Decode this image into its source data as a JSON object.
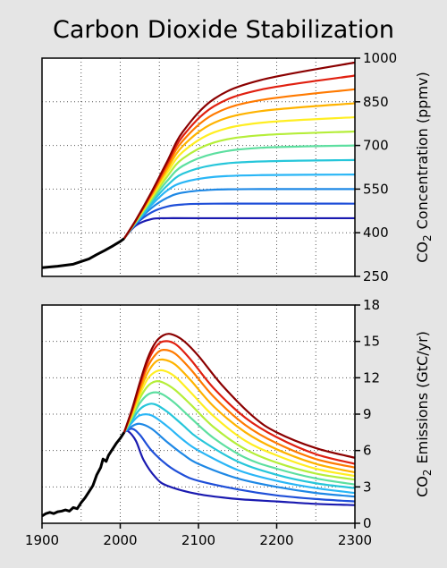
{
  "title": "Carbon Dioxide Stabilization",
  "chart_data": [
    {
      "type": "line",
      "panel": "concentration",
      "ylabel_prefix": "CO",
      "ylabel_sub": "2",
      "ylabel_suffix": "Concentration (ppmv)",
      "xlim": [
        1900,
        2300
      ],
      "ylim": [
        250,
        1000
      ],
      "yticks": [
        250,
        400,
        550,
        700,
        850,
        1000
      ],
      "y_tick_side": "right",
      "grid": true,
      "history": {
        "color": "#000000",
        "x": [
          1900,
          1920,
          1940,
          1960,
          1970,
          1980,
          1990,
          2000,
          2005
        ],
        "y": [
          280,
          285,
          292,
          310,
          325,
          339,
          354,
          370,
          380
        ]
      },
      "series": [
        {
          "color": "#1a1ab0",
          "x": [
            2005,
            2020,
            2040,
            2060,
            2100,
            2300
          ],
          "y": [
            380,
            425,
            447,
            450,
            450,
            450
          ]
        },
        {
          "color": "#1f4fd8",
          "x": [
            2005,
            2020,
            2040,
            2060,
            2080,
            2120,
            2300
          ],
          "y": [
            380,
            430,
            470,
            490,
            497,
            500,
            500
          ]
        },
        {
          "color": "#1e88e5",
          "x": [
            2005,
            2020,
            2040,
            2060,
            2080,
            2120,
            2180,
            2300
          ],
          "y": [
            380,
            432,
            485,
            520,
            538,
            548,
            550,
            550
          ]
        },
        {
          "color": "#29b6f6",
          "x": [
            2005,
            2020,
            2040,
            2060,
            2080,
            2120,
            2180,
            2300
          ],
          "y": [
            380,
            433,
            495,
            545,
            573,
            592,
            598,
            600
          ]
        },
        {
          "color": "#26c6da",
          "x": [
            2005,
            2020,
            2040,
            2060,
            2080,
            2120,
            2180,
            2300
          ],
          "y": [
            380,
            435,
            503,
            562,
            603,
            633,
            645,
            650
          ]
        },
        {
          "color": "#5ddfa0",
          "x": [
            2005,
            2020,
            2040,
            2060,
            2080,
            2120,
            2180,
            2300
          ],
          "y": [
            380,
            437,
            510,
            578,
            630,
            672,
            692,
            700
          ]
        },
        {
          "color": "#b5ee3a",
          "x": [
            2005,
            2020,
            2040,
            2060,
            2080,
            2120,
            2180,
            2300
          ],
          "y": [
            380,
            438,
            517,
            593,
            655,
            710,
            735,
            748
          ]
        },
        {
          "color": "#ffee22",
          "x": [
            2005,
            2020,
            2040,
            2060,
            2080,
            2120,
            2180,
            2300
          ],
          "y": [
            380,
            440,
            523,
            606,
            678,
            745,
            778,
            797
          ]
        },
        {
          "color": "#ffb300",
          "x": [
            2005,
            2020,
            2040,
            2060,
            2080,
            2120,
            2180,
            2300
          ],
          "y": [
            380,
            441,
            528,
            618,
            698,
            778,
            818,
            845
          ]
        },
        {
          "color": "#ff7a00",
          "x": [
            2005,
            2020,
            2040,
            2060,
            2080,
            2120,
            2180,
            2300
          ],
          "y": [
            380,
            442,
            532,
            628,
            716,
            808,
            856,
            893
          ]
        },
        {
          "color": "#e02010",
          "x": [
            2005,
            2020,
            2040,
            2060,
            2080,
            2120,
            2180,
            2300
          ],
          "y": [
            380,
            443,
            536,
            637,
            732,
            835,
            892,
            940
          ]
        },
        {
          "color": "#8b0000",
          "x": [
            2005,
            2020,
            2040,
            2060,
            2080,
            2120,
            2180,
            2300
          ],
          "y": [
            380,
            444,
            540,
            645,
            747,
            860,
            925,
            985
          ]
        }
      ]
    },
    {
      "type": "line",
      "panel": "emissions",
      "ylabel_prefix": "CO",
      "ylabel_sub": "2",
      "ylabel_suffix": "Emissions (GtC/yr)",
      "xlim": [
        1900,
        2300
      ],
      "ylim": [
        0,
        18
      ],
      "yticks": [
        0,
        3,
        6,
        9,
        12,
        15,
        18
      ],
      "xticks": [
        1900,
        2000,
        2100,
        2200,
        2300
      ],
      "y_tick_side": "right",
      "grid": true,
      "history": {
        "color": "#000000",
        "x": [
          1900,
          1905,
          1910,
          1915,
          1920,
          1925,
          1930,
          1935,
          1940,
          1945,
          1950,
          1955,
          1960,
          1965,
          1970,
          1975,
          1978,
          1982,
          1985,
          1990,
          1995,
          2000,
          2005
        ],
        "y": [
          0.6,
          0.8,
          0.9,
          0.8,
          0.95,
          1.0,
          1.1,
          1.0,
          1.3,
          1.2,
          1.7,
          2.1,
          2.6,
          3.1,
          4.0,
          4.6,
          5.3,
          5.1,
          5.6,
          6.1,
          6.6,
          7.0,
          7.5
        ]
      },
      "series": [
        {
          "color": "#1a1ab0",
          "x": [
            2005,
            2010,
            2020,
            2030,
            2045,
            2060,
            2100,
            2150,
            2200,
            2250,
            2300
          ],
          "y": [
            7.5,
            7.6,
            6.8,
            5.2,
            3.8,
            3.1,
            2.4,
            2.0,
            1.8,
            1.6,
            1.5
          ]
        },
        {
          "color": "#1f4fd8",
          "x": [
            2005,
            2015,
            2025,
            2040,
            2060,
            2080,
            2100,
            2150,
            2200,
            2250,
            2300
          ],
          "y": [
            7.5,
            7.8,
            7.3,
            6.0,
            4.8,
            4.0,
            3.5,
            2.8,
            2.3,
            2.0,
            1.8
          ]
        },
        {
          "color": "#1e88e5",
          "x": [
            2005,
            2015,
            2025,
            2040,
            2060,
            2080,
            2100,
            2150,
            2200,
            2250,
            2300
          ],
          "y": [
            7.5,
            8.0,
            8.2,
            7.8,
            6.7,
            5.7,
            4.9,
            3.7,
            3.0,
            2.5,
            2.2
          ]
        },
        {
          "color": "#29b6f6",
          "x": [
            2005,
            2015,
            2025,
            2040,
            2060,
            2080,
            2100,
            2150,
            2200,
            2250,
            2300
          ],
          "y": [
            7.5,
            8.3,
            8.9,
            8.9,
            8.0,
            6.9,
            6.0,
            4.4,
            3.5,
            2.9,
            2.5
          ]
        },
        {
          "color": "#26c6da",
          "x": [
            2005,
            2015,
            2025,
            2035,
            2045,
            2060,
            2080,
            2100,
            2150,
            2200,
            2250,
            2300
          ],
          "y": [
            7.5,
            8.5,
            9.4,
            9.8,
            9.8,
            9.2,
            8.1,
            7.0,
            5.1,
            4.0,
            3.3,
            2.9
          ]
        },
        {
          "color": "#5ddfa0",
          "x": [
            2005,
            2015,
            2025,
            2035,
            2045,
            2055,
            2070,
            2090,
            2120,
            2160,
            2200,
            2250,
            2300
          ],
          "y": [
            7.5,
            8.7,
            9.9,
            10.6,
            10.8,
            10.6,
            9.9,
            8.7,
            7.0,
            5.4,
            4.5,
            3.7,
            3.2
          ]
        },
        {
          "color": "#b5ee3a",
          "x": [
            2005,
            2015,
            2025,
            2035,
            2045,
            2055,
            2070,
            2090,
            2120,
            2160,
            2200,
            2250,
            2300
          ],
          "y": [
            7.5,
            8.8,
            10.3,
            11.3,
            11.7,
            11.6,
            11.0,
            9.8,
            7.9,
            6.1,
            5.0,
            4.1,
            3.6
          ]
        },
        {
          "color": "#ffee22",
          "x": [
            2005,
            2015,
            2025,
            2035,
            2045,
            2055,
            2070,
            2090,
            2120,
            2160,
            2200,
            2250,
            2300
          ],
          "y": [
            7.5,
            9.0,
            10.6,
            11.9,
            12.5,
            12.6,
            12.1,
            10.8,
            8.8,
            6.8,
            5.6,
            4.5,
            3.9
          ]
        },
        {
          "color": "#ffb300",
          "x": [
            2005,
            2015,
            2025,
            2035,
            2045,
            2055,
            2070,
            2090,
            2120,
            2160,
            2200,
            2250,
            2300
          ],
          "y": [
            7.5,
            9.1,
            10.9,
            12.4,
            13.3,
            13.5,
            13.1,
            11.8,
            9.6,
            7.5,
            6.1,
            4.9,
            4.2
          ]
        },
        {
          "color": "#ff7a00",
          "x": [
            2005,
            2015,
            2025,
            2035,
            2045,
            2055,
            2070,
            2090,
            2120,
            2160,
            2200,
            2250,
            2300
          ],
          "y": [
            7.5,
            9.2,
            11.2,
            12.9,
            13.9,
            14.3,
            14.0,
            12.7,
            10.4,
            8.1,
            6.6,
            5.3,
            4.6
          ]
        },
        {
          "color": "#e02010",
          "x": [
            2005,
            2015,
            2025,
            2035,
            2045,
            2055,
            2070,
            2090,
            2120,
            2160,
            2200,
            2250,
            2300
          ],
          "y": [
            7.5,
            9.3,
            11.4,
            13.3,
            14.5,
            15.0,
            14.8,
            13.5,
            11.1,
            8.7,
            7.1,
            5.7,
            4.9
          ]
        },
        {
          "color": "#8b0000",
          "x": [
            2005,
            2015,
            2025,
            2035,
            2045,
            2055,
            2065,
            2080,
            2100,
            2130,
            2170,
            2200,
            2250,
            2300
          ],
          "y": [
            7.5,
            9.4,
            11.6,
            13.6,
            14.9,
            15.5,
            15.6,
            15.1,
            13.8,
            11.4,
            8.8,
            7.5,
            6.2,
            5.4
          ]
        }
      ]
    }
  ]
}
